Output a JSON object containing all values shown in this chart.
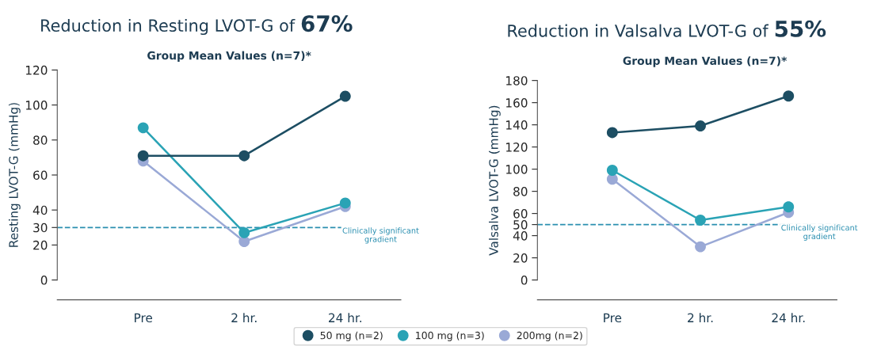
{
  "chart_data": [
    {
      "type": "line",
      "title": "Reduction in Resting LVOT-G of 67%",
      "subtitle": "Group Mean Values (n=7)*",
      "ylabel": "Resting LVOT-G (mmHg)",
      "categories": [
        "Pre",
        "2 hr.",
        "24 hr."
      ],
      "series": [
        {
          "name": "50 mg (n=2)",
          "color": "#1d4e63",
          "values": [
            71,
            71,
            105
          ]
        },
        {
          "name": "100 mg (n=3)",
          "color": "#2aa3b5",
          "values": [
            87,
            27,
            44
          ]
        },
        {
          "name": "200mg (n=2)",
          "color": "#9aa9d6",
          "values": [
            68,
            22,
            42
          ]
        }
      ],
      "ylim": [
        0,
        120
      ],
      "yticks": [
        0,
        20,
        30,
        40,
        60,
        80,
        100,
        120
      ],
      "marker": "circle",
      "grid": false,
      "legend": "bottom",
      "ref_lines": [
        {
          "axis": "y",
          "value": 30,
          "color": "#2a8fb0",
          "line_style": "dashed"
        }
      ],
      "annotations": [
        "Clinically significant\ngradient"
      ]
    },
    {
      "type": "line",
      "title": "Reduction in Valsalva LVOT-G of 55%",
      "subtitle": "Group Mean Values (n=7)*",
      "ylabel": "Valsalva LVOT-G (mmHg)",
      "categories": [
        "Pre",
        "2 hr.",
        "24 hr."
      ],
      "series": [
        {
          "color": "#1d4e63",
          "values": [
            133,
            139,
            166
          ]
        },
        {
          "color": "#2aa3b5",
          "values": [
            99,
            54,
            66
          ]
        },
        {
          "color": "#9aa9d6",
          "values": [
            91,
            30,
            61
          ]
        }
      ],
      "ylim": [
        0,
        180
      ],
      "yticks": [
        0,
        20,
        40,
        50,
        60,
        80,
        100,
        120,
        140,
        160,
        180
      ],
      "marker": "circle",
      "grid": false,
      "ref_lines": [
        {
          "axis": "y",
          "value": 50,
          "color": "#2a8fb0",
          "line_style": "dashed"
        }
      ],
      "annotations": [
        "Clinically significant\ngradient"
      ]
    }
  ]
}
